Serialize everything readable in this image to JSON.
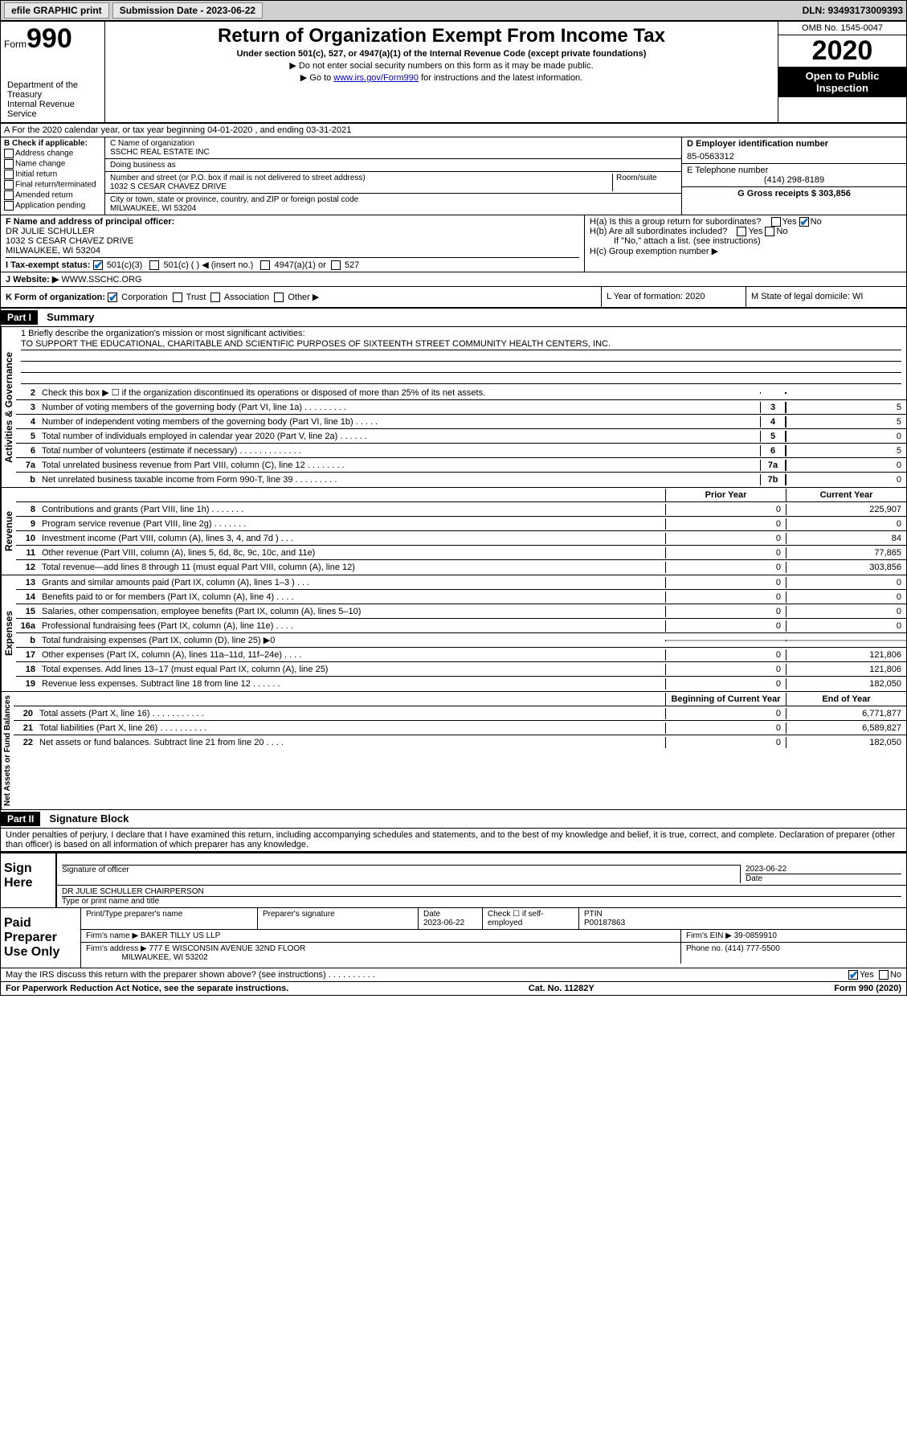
{
  "header": {
    "efile": "efile GRAPHIC print",
    "submission_label": "Submission Date - 2023-06-22",
    "dln": "DLN: 93493173009393"
  },
  "form_id": {
    "prefix": "Form",
    "number": "990"
  },
  "title": "Return of Organization Exempt From Income Tax",
  "subtitle": "Under section 501(c), 527, or 4947(a)(1) of the Internal Revenue Code (except private foundations)",
  "note1": "▶ Do not enter social security numbers on this form as it may be made public.",
  "note2_pre": "▶ Go to ",
  "note2_link": "www.irs.gov/Form990",
  "note2_post": " for instructions and the latest information.",
  "omb": "OMB No. 1545-0047",
  "year": "2020",
  "open_public": "Open to Public Inspection",
  "dept": "Department of the Treasury\nInternal Revenue Service",
  "section_a": "A For the 2020 calendar year, or tax year beginning 04-01-2020    , and ending 03-31-2021",
  "b": {
    "label": "B Check if applicable:",
    "opts": [
      "Address change",
      "Name change",
      "Initial return",
      "Final return/terminated",
      "Amended return",
      "Application pending"
    ]
  },
  "c": {
    "name_label": "C Name of organization",
    "name": "SSCHC REAL ESTATE INC",
    "dba_label": "Doing business as",
    "dba": "",
    "street_label": "Number and street (or P.O. box if mail is not delivered to street address)",
    "room_label": "Room/suite",
    "street": "1032 S CESAR CHAVEZ DRIVE",
    "city_label": "City or town, state or province, country, and ZIP or foreign postal code",
    "city": "MILWAUKEE, WI  53204"
  },
  "d": {
    "label": "D Employer identification number",
    "value": "85-0563312"
  },
  "e": {
    "label": "E Telephone number",
    "value": "(414) 298-8189"
  },
  "g": "G Gross receipts $ 303,856",
  "f": {
    "label": "F  Name and address of principal officer:",
    "name": "DR JULIE SCHULLER",
    "addr1": "1032 S CESAR CHAVEZ DRIVE",
    "addr2": "MILWAUKEE, WI  53204"
  },
  "h": {
    "a": "H(a)  Is this a group return for subordinates?",
    "b": "H(b)  Are all subordinates included?",
    "b_note": "If \"No,\" attach a list. (see instructions)",
    "c": "H(c)  Group exemption number ▶"
  },
  "i": {
    "label": "I   Tax-exempt status:",
    "opts": [
      "501(c)(3)",
      "501(c) (  ) ◀ (insert no.)",
      "4947(a)(1) or",
      "527"
    ]
  },
  "j": {
    "label": "J   Website: ▶",
    "value": "WWW.SSCHC.ORG"
  },
  "k": "K Form of organization:",
  "k_opts": [
    "Corporation",
    "Trust",
    "Association",
    "Other ▶"
  ],
  "l": "L Year of formation: 2020",
  "m": "M State of legal domicile: WI",
  "part1": {
    "header": "Part I",
    "title": "Summary"
  },
  "mission_label": "1   Briefly describe the organization's mission or most significant activities:",
  "mission": "TO SUPPORT THE EDUCATIONAL, CHARITABLE AND SCIENTIFIC PURPOSES OF SIXTEENTH STREET COMMUNITY HEALTH CENTERS, INC.",
  "gov_lines": [
    {
      "n": "2",
      "t": "Check this box ▶ ☐  if the organization discontinued its operations or disposed of more than 25% of its net assets.",
      "box": "",
      "v": ""
    },
    {
      "n": "3",
      "t": "Number of voting members of the governing body (Part VI, line 1a)   .    .    .    .    .    .    .    .    .",
      "box": "3",
      "v": "5"
    },
    {
      "n": "4",
      "t": "Number of independent voting members of the governing body (Part VI, line 1b)   .    .    .    .    .",
      "box": "4",
      "v": "5"
    },
    {
      "n": "5",
      "t": "Total number of individuals employed in calendar year 2020 (Part V, line 2a)   .    .    .    .    .    .",
      "box": "5",
      "v": "0"
    },
    {
      "n": "6",
      "t": "Total number of volunteers (estimate if necessary)   .    .    .    .    .    .    .    .    .    .    .    .    .",
      "box": "6",
      "v": "5"
    },
    {
      "n": "7a",
      "t": "Total unrelated business revenue from Part VIII, column (C), line 12   .    .    .    .    .    .    .    .",
      "box": "7a",
      "v": "0"
    },
    {
      "n": "b",
      "t": "Net unrelated business taxable income from Form 990-T, line 39   .    .    .    .    .    .    .    .    .",
      "box": "7b",
      "v": "0"
    }
  ],
  "col_headers": {
    "prior": "Prior Year",
    "current": "Current Year"
  },
  "rev_lines": [
    {
      "n": "8",
      "t": "Contributions and grants (Part VIII, line 1h)   .    .    .    .    .    .    .",
      "p": "0",
      "c": "225,907"
    },
    {
      "n": "9",
      "t": "Program service revenue (Part VIII, line 2g)   .    .    .    .    .    .    .",
      "p": "0",
      "c": "0"
    },
    {
      "n": "10",
      "t": "Investment income (Part VIII, column (A), lines 3, 4, and 7d )   .    .    .",
      "p": "0",
      "c": "84"
    },
    {
      "n": "11",
      "t": "Other revenue (Part VIII, column (A), lines 5, 6d, 8c, 9c, 10c, and 11e)",
      "p": "0",
      "c": "77,865"
    },
    {
      "n": "12",
      "t": "Total revenue—add lines 8 through 11 (must equal Part VIII, column (A), line 12)",
      "p": "0",
      "c": "303,856"
    }
  ],
  "exp_lines": [
    {
      "n": "13",
      "t": "Grants and similar amounts paid (Part IX, column (A), lines 1–3 )   .    .    .",
      "p": "0",
      "c": "0"
    },
    {
      "n": "14",
      "t": "Benefits paid to or for members (Part IX, column (A), line 4)   .    .    .    .",
      "p": "0",
      "c": "0"
    },
    {
      "n": "15",
      "t": "Salaries, other compensation, employee benefits (Part IX, column (A), lines 5–10)",
      "p": "0",
      "c": "0"
    },
    {
      "n": "16a",
      "t": "Professional fundraising fees (Part IX, column (A), line 11e)   .    .    .    .",
      "p": "0",
      "c": "0"
    },
    {
      "n": "b",
      "t": "Total fundraising expenses (Part IX, column (D), line 25) ▶0",
      "p": "",
      "c": "",
      "shaded": true
    },
    {
      "n": "17",
      "t": "Other expenses (Part IX, column (A), lines 11a–11d, 11f–24e)   .    .    .    .",
      "p": "0",
      "c": "121,806"
    },
    {
      "n": "18",
      "t": "Total expenses. Add lines 13–17 (must equal Part IX, column (A), line 25)",
      "p": "0",
      "c": "121,806"
    },
    {
      "n": "19",
      "t": "Revenue less expenses. Subtract line 18 from line 12   .    .    .    .    .    .",
      "p": "0",
      "c": "182,050"
    }
  ],
  "net_headers": {
    "begin": "Beginning of Current Year",
    "end": "End of Year"
  },
  "net_lines": [
    {
      "n": "20",
      "t": "Total assets (Part X, line 16)   .    .    .    .    .    .    .    .    .    .    .",
      "p": "0",
      "c": "6,771,877"
    },
    {
      "n": "21",
      "t": "Total liabilities (Part X, line 26)   .    .    .    .    .    .    .    .    .    .",
      "p": "0",
      "c": "6,589,827"
    },
    {
      "n": "22",
      "t": "Net assets or fund balances. Subtract line 21 from line 20   .    .    .    .",
      "p": "0",
      "c": "182,050"
    }
  ],
  "vtabs": {
    "gov": "Activities & Governance",
    "rev": "Revenue",
    "exp": "Expenses",
    "net": "Net Assets or Fund Balances"
  },
  "part2": {
    "header": "Part II",
    "title": "Signature Block"
  },
  "penalty": "Under penalties of perjury, I declare that I have examined this return, including accompanying schedules and statements, and to the best of my knowledge and belief, it is true, correct, and complete. Declaration of preparer (other than officer) is based on all information of which preparer has any knowledge.",
  "sign": {
    "label": "Sign Here",
    "sig_of_officer": "Signature of officer",
    "date": "2023-06-22",
    "date_label": "Date",
    "officer": "DR JULIE SCHULLER  CHAIRPERSON",
    "type_label": "Type or print name and title"
  },
  "prep": {
    "label": "Paid Preparer Use Only",
    "name_label": "Print/Type preparer's name",
    "sig_label": "Preparer's signature",
    "date_label": "Date",
    "date": "2023-06-22",
    "check_label": "Check ☐ if self-employed",
    "ptin_label": "PTIN",
    "ptin": "P00187863",
    "firm_name_label": "Firm's name      ▶",
    "firm_name": "BAKER TILLY US LLP",
    "firm_ein_label": "Firm's EIN ▶",
    "firm_ein": "39-0859910",
    "firm_addr_label": "Firm's address ▶",
    "firm_addr1": "777 E WISCONSIN AVENUE 32ND FLOOR",
    "firm_addr2": "MILWAUKEE, WI  53202",
    "phone_label": "Phone no.",
    "phone": "(414) 777-5500"
  },
  "discuss": "May the IRS discuss this return with the preparer shown above? (see instructions)   .    .    .    .    .    .    .    .    .    .",
  "paperwork": "For Paperwork Reduction Act Notice, see the separate instructions.",
  "catno": "Cat. No. 11282Y",
  "formver": "Form 990 (2020)",
  "yes": "Yes",
  "no": "No"
}
